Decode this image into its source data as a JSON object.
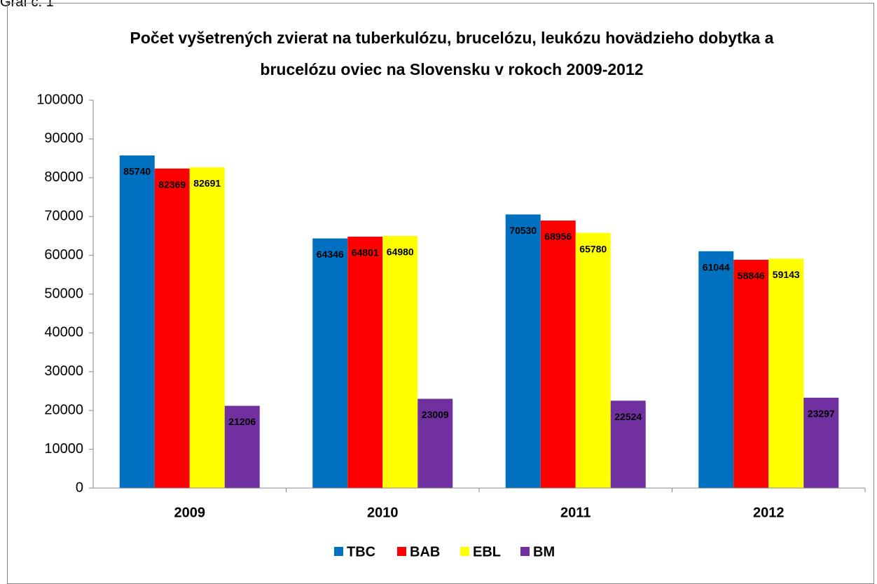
{
  "caption": "Graf č. 1",
  "chart_data": {
    "type": "bar",
    "title": "Počet vyšetrených zvierat na tuberkulózu, brucelózu, leukózu hovädzieho dobytka a brucelózu oviec na Slovensku v rokoch 2009-2012",
    "categories": [
      "2009",
      "2010",
      "2011",
      "2012"
    ],
    "series": [
      {
        "name": "TBC",
        "color": "#0070c0",
        "values": [
          85740,
          64346,
          70530,
          61044
        ]
      },
      {
        "name": "BAB",
        "color": "#ff0000",
        "values": [
          82369,
          64801,
          68956,
          58846
        ]
      },
      {
        "name": "EBL",
        "color": "#ffff00",
        "values": [
          82691,
          64980,
          65780,
          59143
        ]
      },
      {
        "name": "BM",
        "color": "#7030a0",
        "values": [
          21206,
          23009,
          22524,
          23297
        ]
      }
    ],
    "ylim": [
      0,
      100000
    ],
    "yticks": [
      0,
      10000,
      20000,
      30000,
      40000,
      50000,
      60000,
      70000,
      80000,
      90000,
      100000
    ],
    "grid": false,
    "legend": "bottom"
  }
}
